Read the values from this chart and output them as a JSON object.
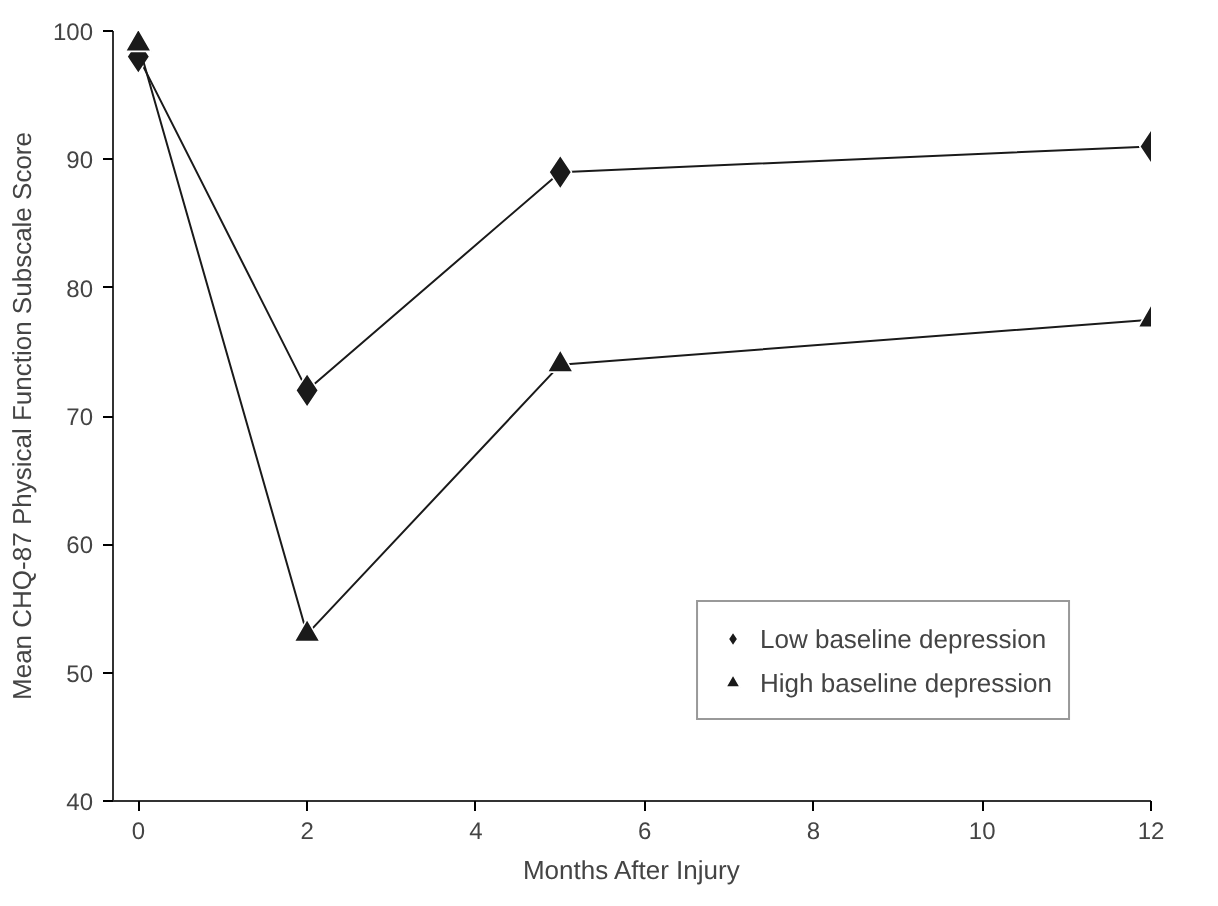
{
  "chart_data": {
    "type": "line",
    "xlabel": "Months After Injury",
    "ylabel": "Mean CHQ-87 Physical Function Subscale Score",
    "x": [
      0,
      2,
      5,
      12
    ],
    "series": [
      {
        "name": "Low baseline depression",
        "color": "#1a1a1a",
        "marker": "diamond",
        "values": [
          98,
          72,
          89,
          91
        ]
      },
      {
        "name": "High baseline depression",
        "color": "#1a1a1a",
        "marker": "triangle",
        "values": [
          99,
          53,
          74,
          77.5
        ]
      }
    ],
    "xlim": [
      -0.3,
      12
    ],
    "xticks": [
      0,
      2,
      4,
      6,
      8,
      10,
      12
    ],
    "ylim": [
      40,
      100
    ],
    "yticks": [
      40,
      50,
      60,
      70,
      80,
      90,
      100
    ],
    "grid": false,
    "legend": "bottom right",
    "line_style": "solid"
  }
}
